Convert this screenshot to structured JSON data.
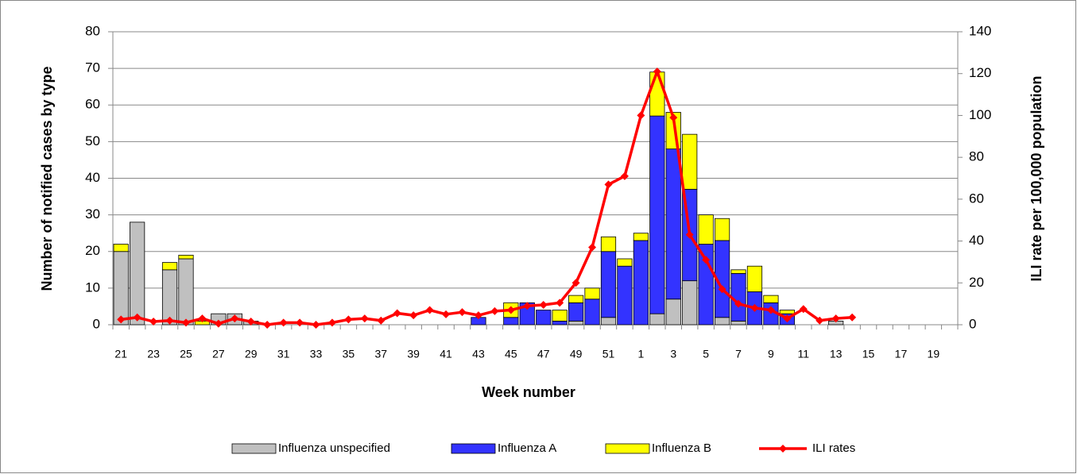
{
  "chart_data": {
    "type": "bar",
    "x_label": "Week number",
    "y_label": "Number of notified cases by type",
    "y2_label": "ILI rate per 100,000 population",
    "categories": [
      "21",
      null,
      "23",
      null,
      "25",
      null,
      "27",
      null,
      "29",
      null,
      "31",
      null,
      "33",
      null,
      "35",
      null,
      "37",
      null,
      "39",
      null,
      "41",
      null,
      "43",
      null,
      "45",
      null,
      "47",
      null,
      "49",
      null,
      "51",
      null,
      "1",
      null,
      "3",
      null,
      "5",
      null,
      "7",
      null,
      "9",
      null,
      "11",
      null,
      "13",
      null,
      "15",
      null,
      "17",
      null,
      "19",
      null
    ],
    "series": [
      {
        "name": "Influenza unspecified",
        "color": "#c0c0c0",
        "values": [
          20,
          28,
          0,
          15,
          18,
          0,
          3,
          3,
          1,
          0,
          0,
          0,
          0,
          0,
          0,
          0,
          0,
          0,
          0,
          0,
          0,
          0,
          0,
          0,
          0,
          0,
          0,
          0,
          1,
          0,
          2,
          0,
          0,
          3,
          7,
          12,
          0,
          2,
          1,
          0,
          0,
          0,
          0,
          0,
          1,
          0,
          0,
          0,
          0,
          0,
          0,
          0
        ]
      },
      {
        "name": "Influenza A",
        "color": "#3333ff",
        "values": [
          0,
          0,
          0,
          0,
          0,
          0,
          0,
          0,
          0,
          0,
          0,
          0,
          0,
          0,
          0,
          0,
          0,
          0,
          0,
          0,
          0,
          0,
          2,
          0,
          2,
          6,
          4,
          1,
          5,
          7,
          18,
          16,
          23,
          54,
          41,
          25,
          22,
          21,
          13,
          9,
          6,
          3,
          0,
          0,
          0,
          0,
          0,
          0,
          0,
          0,
          0,
          0
        ]
      },
      {
        "name": "Influenza B",
        "color": "#ffff00",
        "values": [
          2,
          0,
          0,
          2,
          1,
          1,
          0,
          0,
          0,
          0,
          0,
          0,
          0,
          0,
          0,
          0,
          0,
          0,
          0,
          0,
          0,
          0,
          0,
          0,
          4,
          0,
          0,
          3,
          2,
          3,
          4,
          2,
          2,
          12,
          10,
          15,
          8,
          6,
          1,
          7,
          2,
          1,
          0,
          0,
          0,
          0,
          0,
          0,
          0,
          0,
          0,
          0
        ]
      },
      {
        "name": "ILI rates",
        "color": "#ff0000",
        "axis": "y2",
        "values": [
          2.5,
          3.5,
          1.5,
          2,
          1,
          3,
          0.5,
          3,
          1.5,
          0,
          1,
          1,
          0,
          1,
          2.5,
          3,
          2,
          5.5,
          4.5,
          7,
          5,
          6,
          4.5,
          6.5,
          7,
          9,
          9.5,
          10.5,
          20,
          37,
          67,
          71,
          100,
          121,
          99,
          43,
          31,
          17,
          10,
          8,
          7,
          3,
          7.5,
          2,
          3,
          3.5,
          null,
          null,
          null,
          null,
          null,
          null
        ]
      }
    ],
    "ylim": [
      0,
      80
    ],
    "yticks": [
      0,
      10,
      20,
      30,
      40,
      50,
      60,
      70,
      80
    ],
    "y2lim": [
      0,
      140
    ],
    "y2ticks": [
      0,
      20,
      40,
      60,
      80,
      100,
      120,
      140
    ],
    "grid": true,
    "legend": "bottom"
  }
}
